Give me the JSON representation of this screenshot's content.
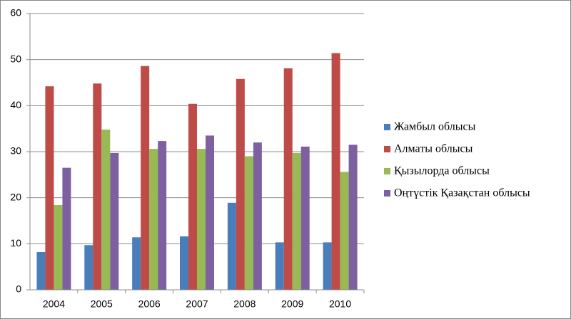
{
  "chart_data": {
    "type": "bar",
    "categories": [
      "2004",
      "2005",
      "2006",
      "2007",
      "2008",
      "2009",
      "2010"
    ],
    "series": [
      {
        "name": "Жамбыл облысы",
        "color": "#4a7ebb",
        "values": [
          8.2,
          9.7,
          11.4,
          11.6,
          18.9,
          10.3,
          10.3
        ]
      },
      {
        "name": "Алматы облысы",
        "color": "#be4b48",
        "values": [
          44.2,
          44.8,
          48.6,
          40.4,
          45.8,
          48.1,
          51.4
        ]
      },
      {
        "name": "Қызылорда облысы",
        "color": "#98b954",
        "values": [
          18.4,
          34.8,
          30.6,
          30.6,
          29.0,
          29.7,
          25.6
        ]
      },
      {
        "name": "Оңтүстік Қазақстан облысы",
        "color": "#7d60a0",
        "values": [
          26.5,
          29.7,
          32.3,
          33.5,
          32.0,
          31.1,
          31.5
        ]
      }
    ],
    "ylim": [
      0,
      60
    ],
    "yticks": [
      0,
      10,
      20,
      30,
      40,
      50,
      60
    ],
    "grid": true,
    "legend": "right"
  }
}
